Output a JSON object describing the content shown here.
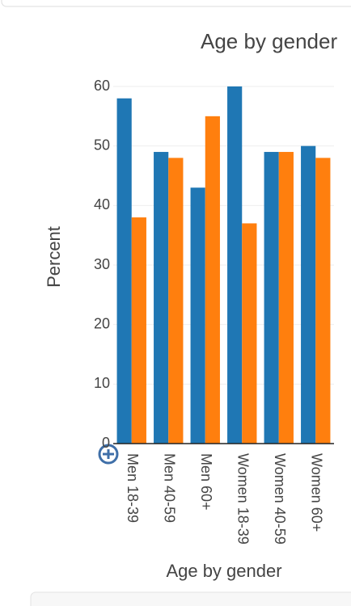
{
  "chart_data": {
    "type": "bar",
    "title": "Age by gender",
    "x_label": "Age by gender",
    "y_label": "Percent",
    "categories": [
      "Men 18-39",
      "Men 40-59",
      "Men 60+",
      "Women 18-39",
      "Women 40-59",
      "Women 60+"
    ],
    "series": [
      {
        "color": "#1f77b4",
        "values": [
          58,
          49,
          43,
          60,
          49,
          50
        ]
      },
      {
        "color": "#ff7f0e",
        "values": [
          38,
          48,
          55,
          37,
          49,
          48
        ]
      }
    ],
    "ylim": [
      0,
      60
    ],
    "yticks": [
      0,
      10,
      20,
      30,
      40,
      50,
      60
    ],
    "grid": true
  }
}
